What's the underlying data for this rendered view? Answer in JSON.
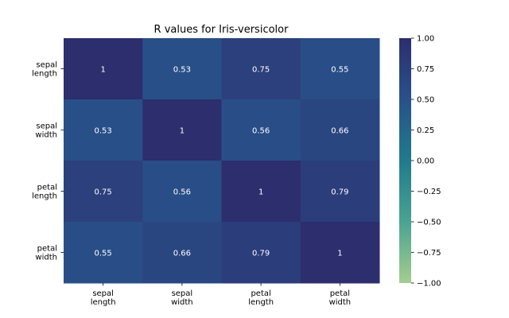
{
  "chart_data": {
    "type": "heatmap",
    "title": "R values for Iris-versicolor",
    "xlabel": "",
    "ylabel": "",
    "row_labels": [
      [
        "sepal",
        "length"
      ],
      [
        "sepal",
        "width"
      ],
      [
        "petal",
        "length"
      ],
      [
        "petal",
        "width"
      ]
    ],
    "col_labels": [
      [
        "sepal",
        "length"
      ],
      [
        "sepal",
        "width"
      ],
      [
        "petal",
        "length"
      ],
      [
        "petal",
        "width"
      ]
    ],
    "values": [
      [
        1,
        0.53,
        0.75,
        0.55
      ],
      [
        0.53,
        1,
        0.56,
        0.66
      ],
      [
        0.75,
        0.56,
        1,
        0.79
      ],
      [
        0.55,
        0.66,
        0.79,
        1
      ]
    ],
    "value_labels": [
      [
        "1",
        "0.53",
        "0.75",
        "0.55"
      ],
      [
        "0.53",
        "1",
        "0.56",
        "0.66"
      ],
      [
        "0.75",
        "0.56",
        "1",
        "0.79"
      ],
      [
        "0.55",
        "0.66",
        "0.79",
        "1"
      ]
    ],
    "colorbar": {
      "range": [
        -1.0,
        1.0
      ],
      "ticks": [
        1.0,
        0.75,
        0.5,
        0.25,
        0.0,
        -0.25,
        -0.5,
        -0.75,
        -1.0
      ],
      "tick_labels": [
        "1.00",
        "0.75",
        "0.50",
        "0.25",
        "0.00",
        "−0.25",
        "−0.50",
        "−0.75",
        "−1.00"
      ],
      "colormap": "crest",
      "stops": [
        "#a5cd90",
        "#4aa391",
        "#1f7b8c",
        "#29518a",
        "#2c2e6e"
      ]
    }
  }
}
